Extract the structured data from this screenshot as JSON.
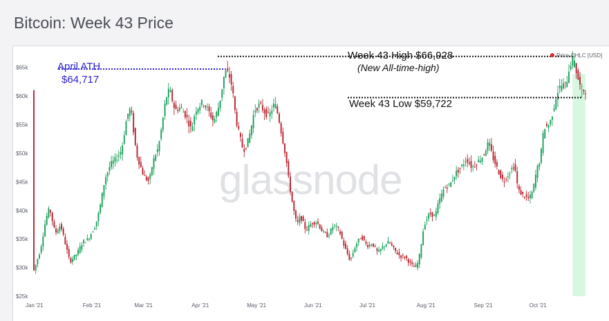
{
  "page": {
    "title": "Bitcoin: Week 43 Price"
  },
  "watermark": "glassnode",
  "chart_data": {
    "type": "candlestick",
    "title": "Bitcoin: Week 43 Price",
    "legend": {
      "label": "Price OHLC [USD]",
      "color": "#e0262b",
      "position": "top-right"
    },
    "x_ticks": [
      "Jan '21",
      "Feb '21",
      "Mar '21",
      "Apr '21",
      "May '21",
      "Jun '21",
      "Jul '21",
      "Aug '21",
      "Sep '21",
      "Oct '21"
    ],
    "y_ticks": [
      "$25k",
      "$30k",
      "$35k",
      "$40k",
      "$45k",
      "$50k",
      "$55k",
      "$60k",
      "$65k"
    ],
    "ylim": [
      25000,
      67500
    ],
    "x_start_day": 0,
    "x_end_day": 302,
    "colors": {
      "up": "#1aa15b",
      "down": "#b8232f",
      "highlight": "#d7f7e1"
    },
    "highlight_range_days": [
      292,
      299
    ],
    "annotations": {
      "high": {
        "label": "Week 43 High $66,928",
        "sublabel": "(New All-time-high)",
        "value": 66928
      },
      "low": {
        "label": "Week 43 Low $59,722",
        "value": 59722
      },
      "ath": {
        "label": "April ATH",
        "value_label": "$64,717",
        "value": 64717
      }
    },
    "anchors": [
      [
        0,
        29000
      ],
      [
        4,
        33000
      ],
      [
        7,
        38500
      ],
      [
        9,
        40500
      ],
      [
        12,
        36000
      ],
      [
        15,
        37500
      ],
      [
        20,
        31000
      ],
      [
        24,
        32500
      ],
      [
        27,
        34500
      ],
      [
        30,
        35000
      ],
      [
        34,
        37500
      ],
      [
        36,
        40000
      ],
      [
        39,
        45500
      ],
      [
        42,
        48000
      ],
      [
        45,
        49000
      ],
      [
        48,
        50500
      ],
      [
        51,
        56500
      ],
      [
        53,
        58000
      ],
      [
        56,
        50000
      ],
      [
        58,
        48000
      ],
      [
        60,
        46000
      ],
      [
        63,
        45000
      ],
      [
        65,
        48500
      ],
      [
        68,
        51000
      ],
      [
        70,
        55000
      ],
      [
        72,
        59500
      ],
      [
        74,
        61200
      ],
      [
        77,
        57500
      ],
      [
        80,
        58000
      ],
      [
        83,
        56500
      ],
      [
        86,
        54000
      ],
      [
        88,
        57500
      ],
      [
        92,
        59000
      ],
      [
        95,
        57500
      ],
      [
        98,
        55500
      ],
      [
        101,
        58500
      ],
      [
        104,
        64300
      ],
      [
        106,
        64000
      ],
      [
        108,
        61500
      ],
      [
        110,
        56000
      ],
      [
        112,
        53000
      ],
      [
        114,
        50500
      ],
      [
        116,
        51500
      ],
      [
        118,
        54000
      ],
      [
        120,
        57500
      ],
      [
        123,
        58500
      ],
      [
        126,
        57000
      ],
      [
        128,
        56500
      ],
      [
        131,
        58800
      ],
      [
        133,
        56500
      ],
      [
        135,
        53000
      ],
      [
        137,
        49500
      ],
      [
        139,
        44500
      ],
      [
        141,
        40500
      ],
      [
        143,
        37500
      ],
      [
        145,
        39000
      ],
      [
        148,
        36500
      ],
      [
        151,
        37800
      ],
      [
        154,
        38000
      ],
      [
        157,
        36200
      ],
      [
        160,
        35500
      ],
      [
        163,
        37500
      ],
      [
        166,
        36500
      ],
      [
        169,
        33500
      ],
      [
        172,
        31200
      ],
      [
        175,
        34000
      ],
      [
        178,
        35500
      ],
      [
        181,
        33800
      ],
      [
        184,
        34200
      ],
      [
        187,
        32500
      ],
      [
        190,
        33800
      ],
      [
        193,
        34500
      ],
      [
        196,
        33000
      ],
      [
        199,
        32000
      ],
      [
        202,
        31800
      ],
      [
        205,
        30500
      ],
      [
        207,
        30000
      ],
      [
        209,
        31000
      ],
      [
        212,
        37500
      ],
      [
        215,
        39500
      ],
      [
        218,
        39000
      ],
      [
        220,
        41500
      ],
      [
        223,
        44000
      ],
      [
        226,
        44500
      ],
      [
        229,
        46500
      ],
      [
        232,
        47500
      ],
      [
        235,
        49000
      ],
      [
        238,
        47500
      ],
      [
        241,
        48500
      ],
      [
        244,
        49500
      ],
      [
        247,
        52000
      ],
      [
        249,
        49500
      ],
      [
        252,
        47000
      ],
      [
        255,
        45000
      ],
      [
        258,
        46500
      ],
      [
        261,
        48000
      ],
      [
        263,
        43500
      ],
      [
        266,
        42500
      ],
      [
        269,
        42000
      ],
      [
        271,
        43500
      ],
      [
        273,
        47000
      ],
      [
        275,
        49000
      ],
      [
        277,
        54500
      ],
      [
        280,
        55000
      ],
      [
        282,
        57500
      ],
      [
        284,
        60500
      ],
      [
        286,
        61800
      ],
      [
        289,
        62000
      ],
      [
        291,
        65500
      ],
      [
        293,
        66500
      ],
      [
        295,
        63500
      ],
      [
        297,
        61200
      ],
      [
        299,
        61000
      ]
    ]
  }
}
